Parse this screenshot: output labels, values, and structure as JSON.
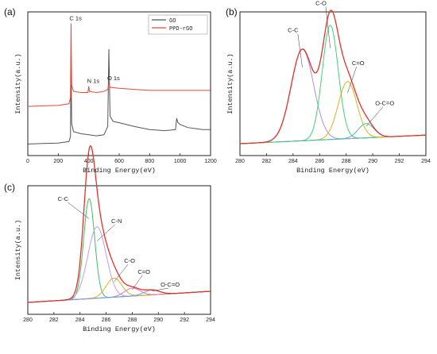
{
  "chart_data": [
    {
      "id": "a",
      "panel_label": "(a)",
      "type": "line",
      "xlabel": "Binding Energy(eV)",
      "ylabel": "Intensity(a.u.)",
      "xlim": [
        0,
        1200
      ],
      "xticks": [
        0,
        200,
        400,
        600,
        800,
        1000,
        1200
      ],
      "legend": {
        "placement": "top-right"
      },
      "series": [
        {
          "name": "GO",
          "color": "#555555",
          "points": [
            [
              0,
              0.05
            ],
            [
              100,
              0.055
            ],
            [
              200,
              0.06
            ],
            [
              270,
              0.075
            ],
            [
              280,
              0.12
            ],
            [
              284,
              0.9
            ],
            [
              288,
              0.25
            ],
            [
              300,
              0.17
            ],
            [
              350,
              0.15
            ],
            [
              400,
              0.14
            ],
            [
              450,
              0.13
            ],
            [
              500,
              0.14
            ],
            [
              525,
              0.22
            ],
            [
              532,
              0.97
            ],
            [
              540,
              0.32
            ],
            [
              560,
              0.27
            ],
            [
              620,
              0.25
            ],
            [
              700,
              0.22
            ],
            [
              800,
              0.19
            ],
            [
              900,
              0.18
            ],
            [
              970,
              0.19
            ],
            [
              978,
              0.3
            ],
            [
              985,
              0.26
            ],
            [
              1000,
              0.24
            ],
            [
              1050,
              0.21
            ],
            [
              1100,
              0.2
            ],
            [
              1150,
              0.19
            ],
            [
              1200,
              0.19
            ]
          ]
        },
        {
          "name": "PPD-rGO",
          "color": "#e8473a",
          "points": [
            [
              0,
              0.415
            ],
            [
              100,
              0.42
            ],
            [
              200,
              0.425
            ],
            [
              270,
              0.44
            ],
            [
              280,
              0.5
            ],
            [
              284,
              1.22
            ],
            [
              288,
              0.62
            ],
            [
              300,
              0.56
            ],
            [
              350,
              0.55
            ],
            [
              395,
              0.55
            ],
            [
              400,
              0.61
            ],
            [
              405,
              0.56
            ],
            [
              450,
              0.55
            ],
            [
              500,
              0.56
            ],
            [
              525,
              0.58
            ],
            [
              532,
              0.64
            ],
            [
              540,
              0.6
            ],
            [
              600,
              0.59
            ],
            [
              700,
              0.58
            ],
            [
              800,
              0.57
            ],
            [
              900,
              0.57
            ],
            [
              1000,
              0.57
            ],
            [
              1100,
              0.57
            ],
            [
              1200,
              0.57
            ]
          ]
        }
      ],
      "annotations": [
        {
          "text": "C 1s",
          "x": 284,
          "y": 1.22
        },
        {
          "text": "N 1s",
          "x": 400,
          "y": 0.61
        },
        {
          "text": "O 1s",
          "x": 532,
          "y": 0.64
        }
      ]
    },
    {
      "id": "b",
      "panel_label": "(b)",
      "type": "line",
      "xlabel": "Binding Energy(eV)",
      "ylabel": "Intensity(a.u.)",
      "xlim": [
        280,
        294
      ],
      "xticks": [
        280,
        282,
        284,
        286,
        288,
        290,
        292,
        294
      ],
      "baseline": {
        "color": "#22c1d6",
        "x0": 280,
        "y0": 0.0,
        "x1": 294,
        "y1": 0.06
      },
      "envelope": {
        "color": "#e0332b"
      },
      "components": [
        {
          "label": "C-C",
          "center": 284.7,
          "height": 0.64,
          "width": 0.85,
          "color": "#b58ae0"
        },
        {
          "label": "C-O",
          "center": 286.8,
          "height": 0.8,
          "width": 0.6,
          "color": "#3fd17a"
        },
        {
          "label": "C=O",
          "center": 288.1,
          "height": 0.4,
          "width": 0.7,
          "color": "#e0b020"
        },
        {
          "label": "O-C=O",
          "center": 289.5,
          "height": 0.1,
          "width": 0.6,
          "color": "#44c0a0"
        }
      ],
      "annotations": [
        {
          "text": "C-C",
          "x": 284.0,
          "y": 0.78
        },
        {
          "text": "C-O",
          "x": 286.1,
          "y": 0.97
        },
        {
          "text": "C=O",
          "x": 288.9,
          "y": 0.55
        },
        {
          "text": "O-C=O",
          "x": 290.9,
          "y": 0.27
        }
      ]
    },
    {
      "id": "c",
      "panel_label": "(c)",
      "type": "line",
      "xlabel": "Binding Energy(eV)",
      "ylabel": "Intensity(a.u.)",
      "xlim": [
        280,
        294
      ],
      "xticks": [
        280,
        282,
        284,
        286,
        288,
        290,
        292,
        294
      ],
      "baseline": {
        "color": "#22c1d6",
        "x0": 280,
        "y0": 0.0,
        "x1": 294,
        "y1": 0.07
      },
      "envelope": {
        "color": "#e0332b"
      },
      "components": [
        {
          "label": "C-C",
          "center": 284.7,
          "height": 0.63,
          "width": 0.42,
          "color": "#3fbf60"
        },
        {
          "label": "C-N",
          "center": 285.3,
          "height": 0.45,
          "width": 0.7,
          "color": "#c79ae8"
        },
        {
          "label": "C-O",
          "center": 286.6,
          "height": 0.12,
          "width": 0.6,
          "color": "#e0b020"
        },
        {
          "label": "C=O",
          "center": 288.0,
          "height": 0.05,
          "width": 0.6,
          "color": "#e87ab0"
        },
        {
          "label": "O-C=O",
          "center": 289.5,
          "height": 0.03,
          "width": 0.6,
          "color": "#70a0e0"
        }
      ],
      "annotations": [
        {
          "text": "C-C",
          "x": 282.7,
          "y": 0.64
        },
        {
          "text": "C-N",
          "x": 286.8,
          "y": 0.5
        },
        {
          "text": "C-O",
          "x": 287.8,
          "y": 0.25
        },
        {
          "text": "C=O",
          "x": 288.9,
          "y": 0.18
        },
        {
          "text": "O-C=O",
          "x": 290.9,
          "y": 0.1
        }
      ]
    }
  ]
}
